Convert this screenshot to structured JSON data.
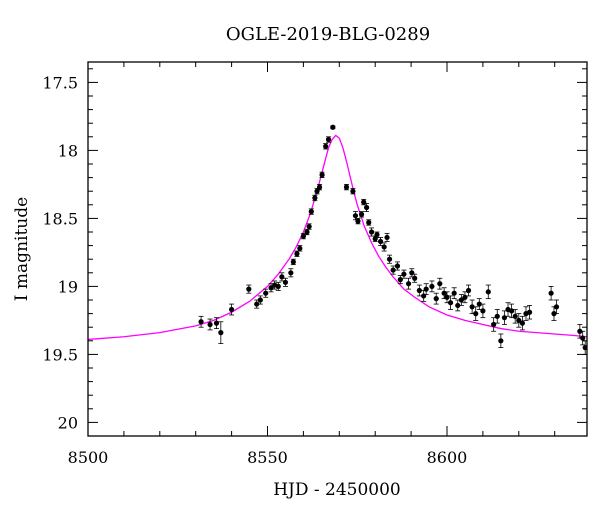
{
  "chart_data": {
    "type": "scatter",
    "title": "OGLE-2019-BLG-0289",
    "xlabel": "HJD - 2450000",
    "ylabel": "I magnitude",
    "xlim": [
      8500,
      8639
    ],
    "ylim": [
      20.1,
      17.35
    ],
    "y_inverted": true,
    "x_ticks": [
      8500,
      8550,
      8600
    ],
    "y_ticks": [
      17.5,
      18,
      18.5,
      19,
      19.5,
      20
    ],
    "x_tick_labels": [
      "8500",
      "8550",
      "8600"
    ],
    "y_tick_labels": [
      "17.5",
      "18",
      "18.5",
      "19",
      "19.5",
      "20"
    ],
    "grid": false,
    "colors": {
      "data": "#000000",
      "model": "#ff00ff",
      "axes": "#000000"
    },
    "series": [
      {
        "type": "scatter_errorbar",
        "x": [
          8531.5,
          8534.0,
          8535.8,
          8537.0,
          8540.0,
          8544.8,
          8547.0,
          8548.0,
          8549.5,
          8551.0,
          8552.0,
          8553.0,
          8554.0,
          8555.0,
          8556.5,
          8557.2,
          8558.2,
          8559.0,
          8560.0,
          8561.0,
          8561.6,
          8562.2,
          8563.2,
          8563.8,
          8564.5,
          8565.2,
          8566.2,
          8567.0,
          8568.2,
          8572.0,
          8573.8,
          8574.5,
          8575.2,
          8576.2,
          8576.8,
          8577.6,
          8578.2,
          8579.0,
          8580.0,
          8580.5,
          8581.5,
          8582.5,
          8583.3,
          8584.0,
          8585.0,
          8586.2,
          8587.0,
          8588.0,
          8589.3,
          8590.2,
          8591.0,
          8592.3,
          8593.5,
          8594.2,
          8595.8,
          8597.0,
          8598.0,
          8599.2,
          8600.0,
          8601.0,
          8602.0,
          8603.0,
          8604.0,
          8605.0,
          8606.0,
          8607.0,
          8608.0,
          8609.0,
          8610.0,
          8611.5,
          8613.0,
          8614.0,
          8615.0,
          8616.0,
          8617.0,
          8618.0,
          8619.0,
          8620.0,
          8621.0,
          8622.0,
          8623.0,
          8629.0,
          8629.8,
          8630.5,
          8637.0,
          8637.8,
          8638.5
        ],
        "y": [
          19.26,
          19.28,
          19.27,
          19.34,
          19.17,
          19.02,
          19.13,
          19.1,
          19.05,
          19.01,
          18.99,
          19.0,
          18.93,
          18.97,
          18.9,
          18.82,
          18.76,
          18.72,
          18.63,
          18.6,
          18.56,
          18.45,
          18.35,
          18.3,
          18.27,
          18.18,
          17.97,
          17.92,
          17.83,
          18.27,
          18.3,
          18.48,
          18.52,
          18.47,
          18.38,
          18.42,
          18.53,
          18.6,
          18.65,
          18.62,
          18.67,
          18.71,
          18.64,
          18.8,
          18.88,
          18.85,
          18.95,
          18.91,
          18.98,
          18.9,
          18.94,
          19.03,
          19.07,
          19.02,
          19.0,
          19.09,
          18.98,
          19.05,
          19.08,
          19.12,
          19.05,
          19.14,
          19.1,
          19.08,
          19.03,
          19.15,
          19.2,
          19.13,
          19.18,
          19.04,
          19.28,
          19.22,
          19.4,
          19.23,
          19.17,
          19.18,
          19.22,
          19.25,
          19.27,
          19.2,
          19.19,
          19.05,
          19.2,
          19.15,
          19.33,
          19.38,
          19.45
        ],
        "err": [
          0.04,
          0.04,
          0.04,
          0.08,
          0.04,
          0.03,
          0.03,
          0.03,
          0.03,
          0.03,
          0.03,
          0.03,
          0.03,
          0.03,
          0.03,
          0.02,
          0.02,
          0.02,
          0.02,
          0.02,
          0.02,
          0.02,
          0.02,
          0.02,
          0.02,
          0.02,
          0.02,
          0.02,
          0.01,
          0.02,
          0.02,
          0.03,
          0.02,
          0.02,
          0.02,
          0.03,
          0.02,
          0.03,
          0.02,
          0.02,
          0.03,
          0.03,
          0.03,
          0.03,
          0.03,
          0.03,
          0.03,
          0.03,
          0.04,
          0.03,
          0.03,
          0.04,
          0.04,
          0.04,
          0.04,
          0.04,
          0.04,
          0.04,
          0.04,
          0.05,
          0.04,
          0.04,
          0.04,
          0.04,
          0.04,
          0.05,
          0.05,
          0.04,
          0.05,
          0.05,
          0.05,
          0.05,
          0.05,
          0.05,
          0.05,
          0.05,
          0.05,
          0.05,
          0.05,
          0.05,
          0.05,
          0.05,
          0.05,
          0.05,
          0.05,
          0.05,
          0.05
        ]
      },
      {
        "type": "model_line",
        "x": [
          8500,
          8510,
          8520,
          8530,
          8535,
          8540,
          8545,
          8550,
          8553,
          8556,
          8558,
          8560,
          8562,
          8564,
          8565,
          8566,
          8567,
          8568,
          8569,
          8570,
          8571,
          8572,
          8573,
          8574,
          8575,
          8577,
          8579,
          8581,
          8583,
          8585,
          8588,
          8591,
          8595,
          8600,
          8605,
          8610,
          8615,
          8620,
          8625,
          8630,
          8635,
          8639
        ],
        "y": [
          19.39,
          19.37,
          19.34,
          19.29,
          19.25,
          19.19,
          19.11,
          19.0,
          18.91,
          18.8,
          18.71,
          18.6,
          18.46,
          18.28,
          18.18,
          18.08,
          17.98,
          17.92,
          17.89,
          17.91,
          17.98,
          18.08,
          18.19,
          18.3,
          18.4,
          18.56,
          18.68,
          18.78,
          18.86,
          18.93,
          19.02,
          19.08,
          19.15,
          19.21,
          19.25,
          19.28,
          19.31,
          19.33,
          19.34,
          19.35,
          19.36,
          19.37
        ]
      }
    ]
  }
}
